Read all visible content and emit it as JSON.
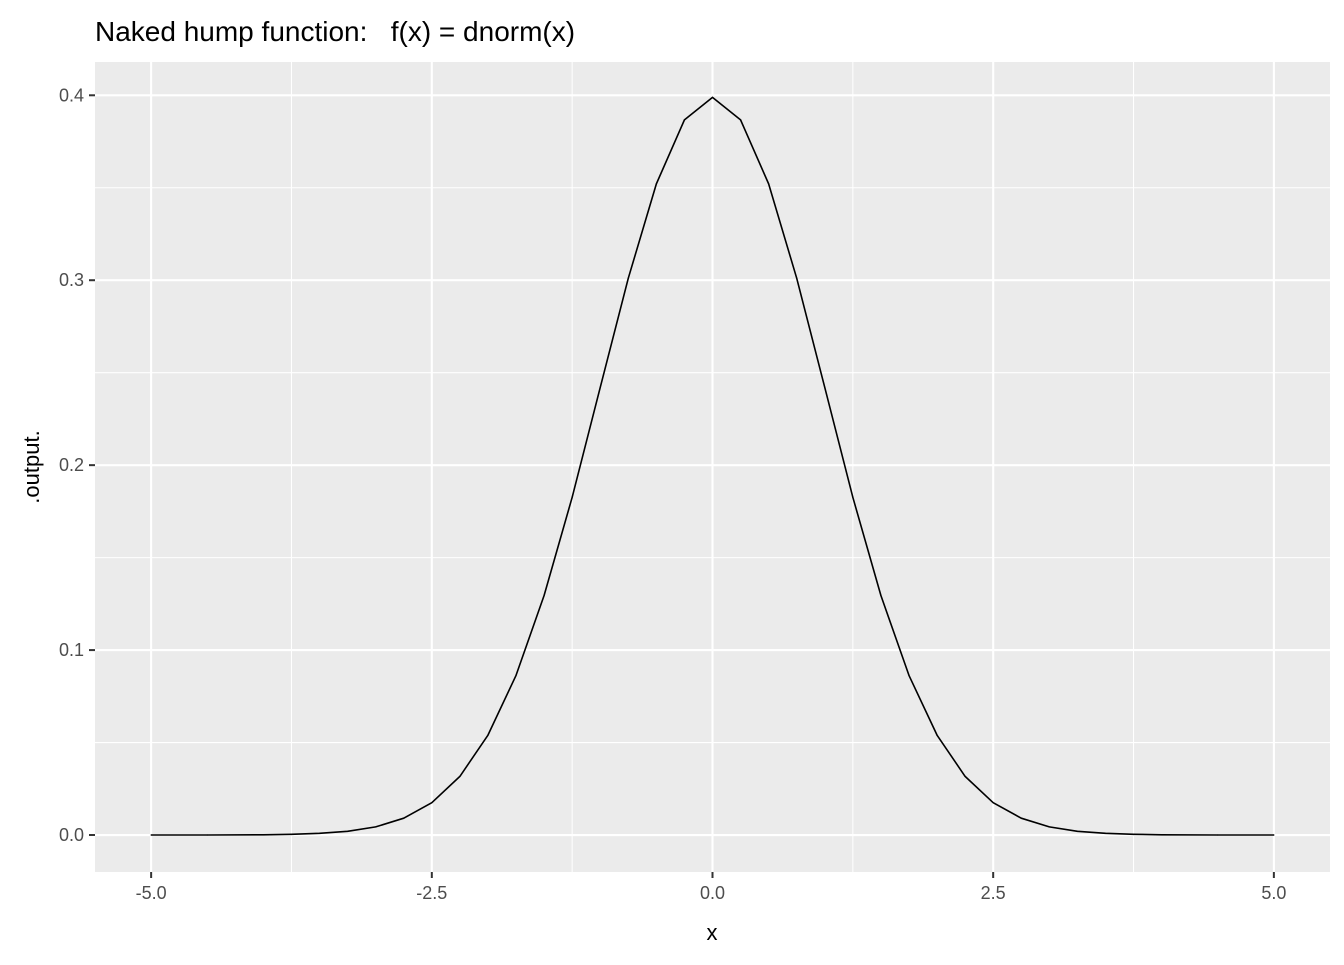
{
  "chart_data": {
    "type": "line",
    "title": "Naked hump function:   f(x) = dnorm(x)",
    "xlabel": "x",
    "ylabel": ".output.",
    "xlim": [
      -5.5,
      5.5
    ],
    "ylim": [
      -0.02,
      0.418
    ],
    "x_ticks": [
      -5.0,
      -2.5,
      0.0,
      2.5,
      5.0
    ],
    "x_tick_labels": [
      "-5.0",
      "-2.5",
      "0.0",
      "2.5",
      "5.0"
    ],
    "x_minor_ticks": [
      -3.75,
      -1.25,
      1.25,
      3.75
    ],
    "y_ticks": [
      0.0,
      0.1,
      0.2,
      0.3,
      0.4
    ],
    "y_tick_labels": [
      "0.0",
      "0.1",
      "0.2",
      "0.3",
      "0.4"
    ],
    "y_minor_ticks": [
      0.05,
      0.15,
      0.25,
      0.35
    ],
    "grid": true,
    "legend": "none",
    "colors": {
      "panel": "#ebebeb",
      "grid": "#ffffff",
      "line": "#000000"
    },
    "series": [
      {
        "x": [
          -5.0,
          -4.5,
          -4.0,
          -3.75,
          -3.5,
          -3.25,
          -3.0,
          -2.75,
          -2.5,
          -2.25,
          -2.0,
          -1.75,
          -1.5,
          -1.25,
          -1.0,
          -0.75,
          -0.5,
          -0.25,
          0.0,
          0.25,
          0.5,
          0.75,
          1.0,
          1.25,
          1.5,
          1.75,
          2.0,
          2.25,
          2.5,
          2.75,
          3.0,
          3.25,
          3.5,
          3.75,
          4.0,
          4.5,
          5.0
        ],
        "y": [
          0.0,
          0.0,
          0.0001,
          0.0004,
          0.0009,
          0.002,
          0.0044,
          0.0091,
          0.0175,
          0.0317,
          0.054,
          0.0863,
          0.1295,
          0.1826,
          0.242,
          0.3011,
          0.3521,
          0.3867,
          0.3989,
          0.3867,
          0.3521,
          0.3011,
          0.242,
          0.1826,
          0.1295,
          0.0863,
          0.054,
          0.0317,
          0.0175,
          0.0091,
          0.0044,
          0.002,
          0.0009,
          0.0004,
          0.0001,
          0.0,
          0.0
        ]
      }
    ]
  }
}
